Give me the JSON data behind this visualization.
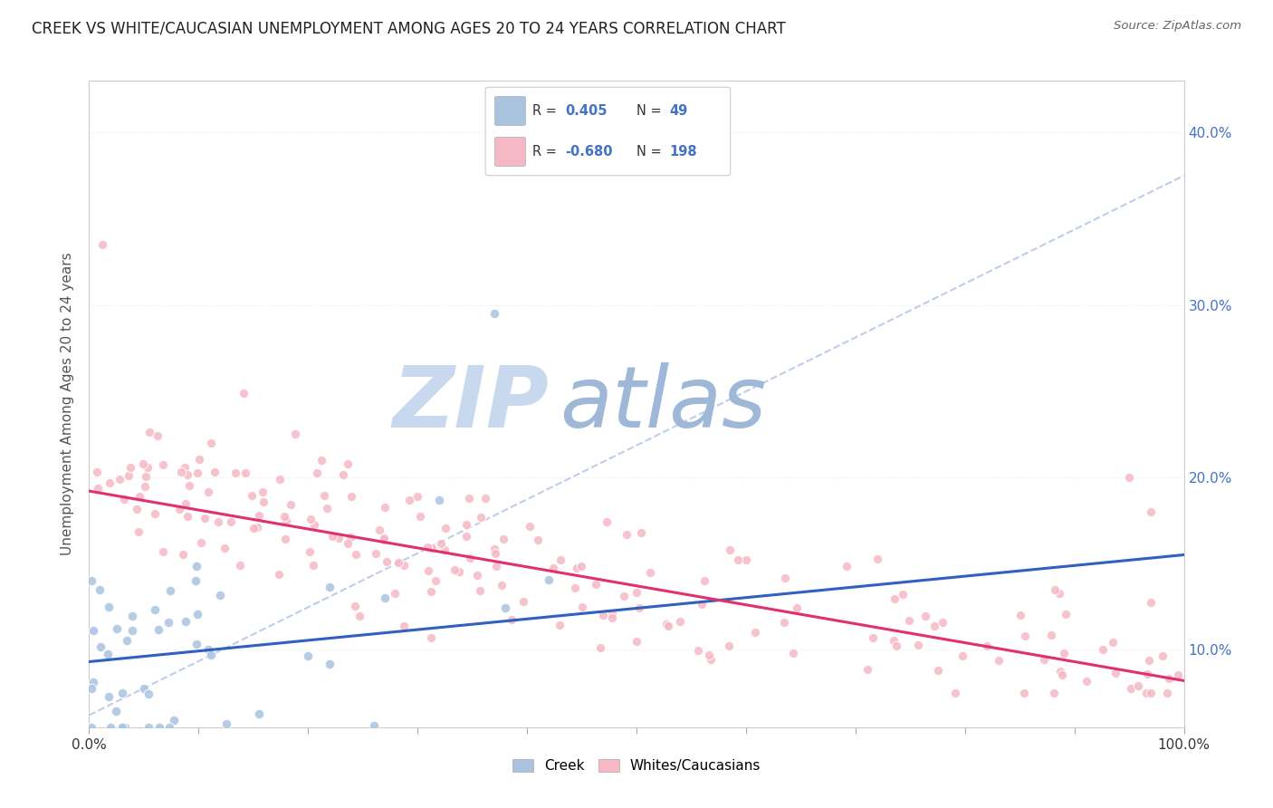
{
  "title": "CREEK VS WHITE/CAUCASIAN UNEMPLOYMENT AMONG AGES 20 TO 24 YEARS CORRELATION CHART",
  "source": "Source: ZipAtlas.com",
  "ylabel": "Unemployment Among Ages 20 to 24 years",
  "xlim": [
    0.0,
    1.0
  ],
  "ylim": [
    0.055,
    0.43
  ],
  "yticks": [
    0.1,
    0.2,
    0.3,
    0.4
  ],
  "ytick_labels": [
    "10.0%",
    "20.0%",
    "30.0%",
    "40.0%"
  ],
  "xticks": [
    0.0,
    0.1,
    0.2,
    0.3,
    0.4,
    0.5,
    0.6,
    0.7,
    0.8,
    0.9,
    1.0
  ],
  "xtick_labels": [
    "0.0%",
    "",
    "",
    "",
    "",
    "",
    "",
    "",
    "",
    "",
    "100.0%"
  ],
  "creek_R": 0.405,
  "creek_N": 49,
  "white_R": -0.68,
  "white_N": 198,
  "creek_color": "#aac4e0",
  "white_color": "#f5b8c4",
  "creek_line_color": "#3060c0",
  "white_line_color": "#e03070",
  "diagonal_line_color": "#b8c8e8",
  "watermark_zip": "ZIP",
  "watermark_atlas": "atlas",
  "watermark_color_zip": "#c8d8ee",
  "watermark_color_atlas": "#a0b8d8",
  "legend_label_creek": "Creek",
  "legend_label_white": "Whites/Caucasians",
  "background_color": "#ffffff",
  "grid_color": "#e8e8e8",
  "title_color": "#222222",
  "source_color": "#666666",
  "label_color": "#4472c4",
  "creek_line_start_y": 0.093,
  "creek_line_end_y": 0.155,
  "white_line_start_y": 0.192,
  "white_line_end_y": 0.082
}
